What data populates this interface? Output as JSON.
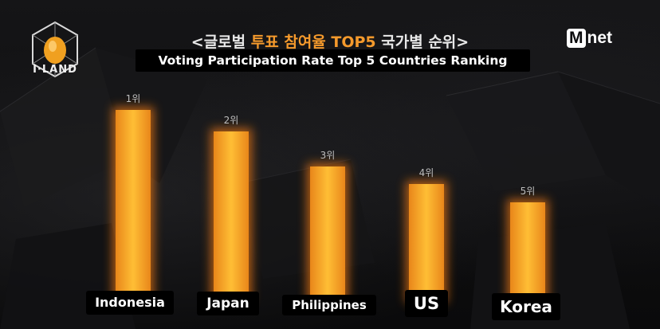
{
  "header": {
    "title_ko_parts": [
      "<글로벌 ",
      "투표 참여율 TOP5",
      " 국가별 순위>"
    ],
    "title_en": "Voting Participation Rate Top 5 Countries Ranking",
    "show_logo_text": "I·LAND",
    "channel_logo_m": "M",
    "channel_logo_rest": "net"
  },
  "colors": {
    "bar_core": "#fbb12a",
    "bar_glow": "#f27a12",
    "title_accent": "#f59a2c"
  },
  "chart_data": {
    "type": "bar",
    "title": "Voting Participation Rate Top 5 Countries Ranking",
    "categories": [
      "Indonesia",
      "Japan",
      "Philippines",
      "US",
      "Korea"
    ],
    "rank_labels": [
      "1위",
      "2위",
      "3위",
      "4위",
      "5위"
    ],
    "values": [
      5,
      4,
      3,
      2,
      1
    ],
    "xlabel": "",
    "ylabel": "",
    "grid": false,
    "legend": "none"
  }
}
